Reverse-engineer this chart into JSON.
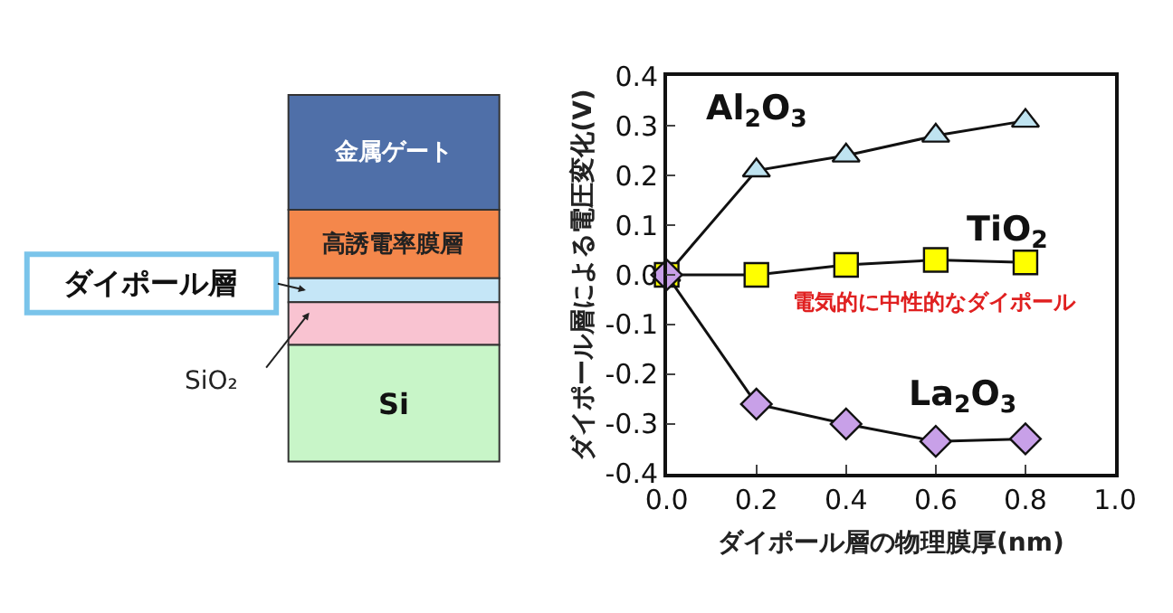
{
  "chart_data": [
    {
      "type": "other",
      "annotations": [
        "金属ゲート",
        "高誘電率膜層",
        "ダイポール層",
        "SiO₂",
        "Si"
      ]
    },
    {
      "type": "line",
      "xlabel": "ダイポール層の物理膜厚(nm)",
      "ylabel": "ダイポール層による電圧変化(V)",
      "x": [
        0.0,
        0.2,
        0.4,
        0.6,
        0.8
      ],
      "series": [
        {
          "name": "Al$_{2}$O$_{3}$",
          "color": "#bfe3f0",
          "marker": "triangle",
          "values": [
            0,
            0.21,
            0.24,
            0.28,
            0.31
          ]
        },
        {
          "name": "TiO$_{2}$",
          "color": "#ffff00",
          "marker": "square",
          "values": [
            0,
            0,
            0.02,
            0.03,
            0.025
          ]
        },
        {
          "name": "La$_{2}$O$_{3}$",
          "color": "#c8a0e8",
          "marker": "diamond",
          "values": [
            0,
            -0.26,
            -0.3,
            -0.335,
            -0.33
          ]
        }
      ],
      "annotations": [
        "電気的に中性的なダイポール"
      ],
      "xlim": [
        0,
        1
      ],
      "xticks": [
        {
          "value": 0,
          "label": "0.0"
        },
        0.2,
        0.4,
        0.6,
        0.8,
        {
          "value": 1,
          "label": "1.0"
        }
      ],
      "ylim": [
        -0.4,
        0.4
      ],
      "yticks": [
        -0.4,
        -0.3,
        -0.2,
        -0.1,
        {
          "value": 0,
          "label": "0.0"
        },
        0.1,
        0.2,
        0.3,
        0.4
      ],
      "grid": false,
      "legend": false,
      "line_style": "solid"
    }
  ]
}
